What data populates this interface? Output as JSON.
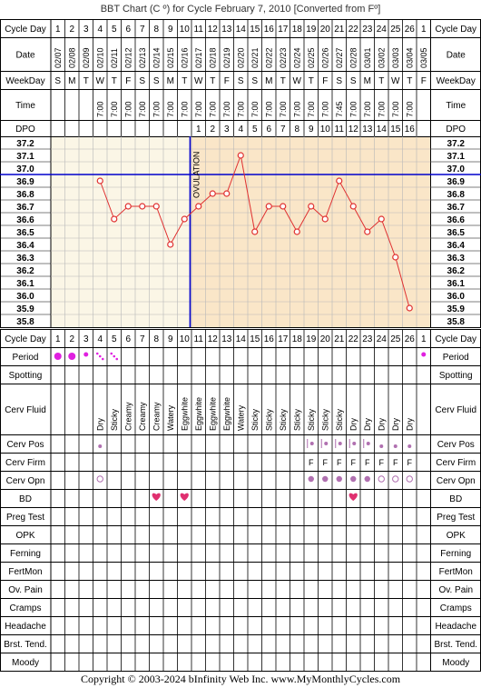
{
  "title": "BBT Chart (C º) for Cycle February 7, 2010  [Converted from Fº]",
  "copyright": "Copyright © 2003-2024 bInfinity Web Inc.    www.MyMonthlyCycles.com",
  "row_labels": {
    "cycle_day": "Cycle Day",
    "date": "Date",
    "weekday": "WeekDay",
    "time": "Time",
    "dpo": "DPO",
    "period": "Period",
    "spotting": "Spotting",
    "cerv_fluid": "Cerv Fluid",
    "cerv_pos": "Cerv Pos",
    "cerv_firm": "Cerv Firm",
    "cerv_opn": "Cerv Opn",
    "bd": "BD",
    "preg_test": "Preg Test",
    "opk": "OPK",
    "ferning": "Ferning",
    "fertmon": "FertMon",
    "ov_pain": "Ov. Pain",
    "cramps": "Cramps",
    "headache": "Headache",
    "brst_tend": "Brst. Tend.",
    "moody": "Moody"
  },
  "ovulation_label": "OVULATION",
  "colors": {
    "data_line": "#e03030",
    "ovulation_line": "#0000cc",
    "coverline": "#0000cc",
    "pre_ov_bg": "#fbf6e6",
    "post_ov_bg": "#fae6c8",
    "period": "#e020e0",
    "bd_heart": "#e03070",
    "cerv_marker": "#b070b0",
    "firm_letter": "#b070b0"
  },
  "chart_data": {
    "type": "line",
    "title": "BBT Chart (C º) for Cycle February 7, 2010  [Converted from Fº]",
    "y_ticks": [
      "37.2",
      "37.1",
      "37.0",
      "36.9",
      "36.8",
      "36.7",
      "36.6",
      "36.5",
      "36.4",
      "36.3",
      "36.2",
      "36.1",
      "36.0",
      "35.9",
      "35.8"
    ],
    "ylim": [
      35.8,
      37.2
    ],
    "cycle_days": [
      1,
      2,
      3,
      4,
      5,
      6,
      7,
      8,
      9,
      10,
      11,
      12,
      13,
      14,
      15,
      16,
      17,
      18,
      19,
      20,
      21,
      22,
      23,
      24,
      25,
      26,
      1
    ],
    "dates": [
      "02/07",
      "02/08",
      "02/09",
      "02/10",
      "02/11",
      "02/12",
      "02/13",
      "02/14",
      "02/15",
      "02/16",
      "02/17",
      "02/18",
      "02/19",
      "02/20",
      "02/21",
      "02/22",
      "02/23",
      "02/24",
      "02/25",
      "02/26",
      "02/27",
      "02/28",
      "03/01",
      "03/02",
      "03/03",
      "03/04",
      "03/05"
    ],
    "weekdays": [
      "S",
      "M",
      "T",
      "W",
      "T",
      "F",
      "S",
      "S",
      "M",
      "T",
      "W",
      "T",
      "F",
      "S",
      "S",
      "M",
      "T",
      "W",
      "T",
      "F",
      "S",
      "S",
      "M",
      "T",
      "W",
      "T",
      "F"
    ],
    "times": [
      "",
      "",
      "",
      "7:00",
      "7:00",
      "7:00",
      "7:00",
      "7:00",
      "7:00",
      "7:00",
      "7:00",
      "7:00",
      "7:00",
      "7:00",
      "7:00",
      "7:00",
      "7:00",
      "7:00",
      "7:00",
      "7:00",
      "7:45",
      "7:00",
      "7:00",
      "7:00",
      "7:00",
      "7:00",
      ""
    ],
    "dpo": [
      "",
      "",
      "",
      "",
      "",
      "",
      "",
      "",
      "",
      "",
      "1",
      "2",
      "3",
      "4",
      "5",
      "6",
      "7",
      "8",
      "9",
      "10",
      "11",
      "12",
      "13",
      "14",
      "15",
      "16",
      ""
    ],
    "temps": [
      null,
      null,
      null,
      36.9,
      36.6,
      36.7,
      36.7,
      36.7,
      36.4,
      36.6,
      36.7,
      36.8,
      36.8,
      37.1,
      36.5,
      36.7,
      36.7,
      36.5,
      36.7,
      36.6,
      36.9,
      36.7,
      36.5,
      36.6,
      36.3,
      35.9,
      null
    ],
    "ovulation_day": 10,
    "coverline": 36.95,
    "period": [
      "big",
      "big",
      "small",
      "spot",
      "spot",
      "",
      "",
      "",
      "",
      "",
      "",
      "",
      "",
      "",
      "",
      "",
      "",
      "",
      "",
      "",
      "",
      "",
      "",
      "",
      "",
      "",
      "small"
    ],
    "spotting": [],
    "cerv_fluid": [
      "",
      "",
      "",
      "Dry",
      "Sticky",
      "Creamy",
      "Creamy",
      "Creamy",
      "Watery",
      "Eggwhite",
      "Eggwhite",
      "Eggwhite",
      "Eggwhite",
      "Watery",
      "Sticky",
      "Sticky",
      "Sticky",
      "Sticky",
      "Sticky",
      "Sticky",
      "Sticky",
      "Dry",
      "Dry",
      "Dry",
      "Dry",
      "Dry",
      ""
    ],
    "cerv_pos": [
      "",
      "",
      "",
      "low",
      "",
      "",
      "",
      "",
      "",
      "",
      "",
      "",
      "",
      "",
      "",
      "",
      "",
      "",
      "mid",
      "mid",
      "mid",
      "mid",
      "mid",
      "low",
      "low",
      "low",
      ""
    ],
    "cerv_firm": [
      "",
      "",
      "",
      "",
      "",
      "",
      "",
      "",
      "",
      "",
      "",
      "",
      "",
      "",
      "",
      "",
      "",
      "",
      "F",
      "F",
      "F",
      "F",
      "F",
      "F",
      "F",
      "F",
      ""
    ],
    "cerv_opn": [
      "",
      "",
      "",
      "open-ring",
      "",
      "",
      "",
      "",
      "",
      "",
      "",
      "",
      "",
      "",
      "",
      "",
      "",
      "",
      "dot",
      "dot",
      "dot",
      "dot",
      "dot",
      "ring",
      "ring",
      "ring",
      ""
    ],
    "bd": [
      false,
      false,
      false,
      false,
      false,
      false,
      false,
      true,
      false,
      true,
      false,
      false,
      false,
      false,
      false,
      false,
      false,
      false,
      false,
      false,
      false,
      true,
      false,
      false,
      false,
      false,
      false
    ]
  }
}
